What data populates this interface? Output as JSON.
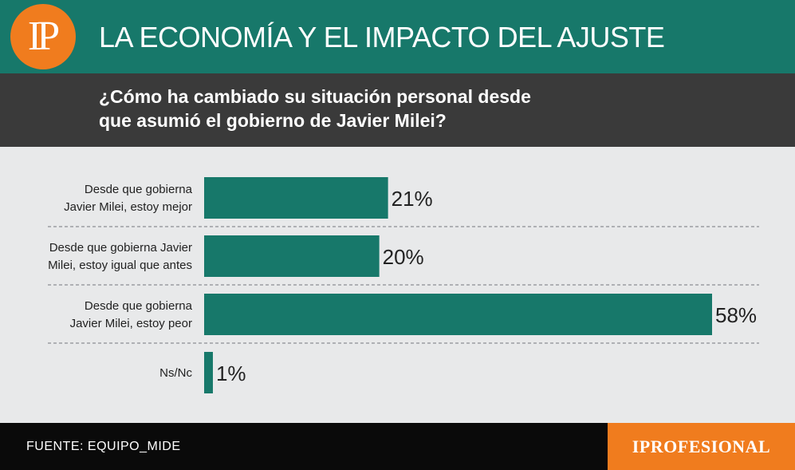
{
  "header": {
    "logo_text": "IP",
    "title": "LA ECONOMÍA Y EL IMPACTO DEL AJUSTE"
  },
  "question": {
    "line1": "¿Cómo ha cambiado su situación personal desde",
    "line2": "que asumió el gobierno de Javier Milei?"
  },
  "chart_data": {
    "type": "bar",
    "orientation": "horizontal",
    "categories": [
      [
        "Desde que gobierna",
        "Javier Milei, estoy mejor"
      ],
      [
        "Desde que gobierna Javier",
        "Milei, estoy igual que antes"
      ],
      [
        "Desde que gobierna",
        "Javier Milei, estoy peor"
      ],
      [
        "Ns/Nc"
      ]
    ],
    "values": [
      21,
      20,
      58,
      1
    ],
    "value_labels": [
      "21%",
      "20%",
      "58%",
      "1%"
    ],
    "unit": "%",
    "xlim": [
      0,
      58
    ],
    "grid": false,
    "colors": {
      "bar": "#17786a",
      "divider": "#8a8f93",
      "label": "#222222"
    }
  },
  "footer": {
    "source": "FUENTE: EQUIPO_MIDE",
    "brand": "IPROFESIONAL"
  },
  "colors": {
    "header_bg": "#17786a",
    "question_bg": "#3a3a3a",
    "chart_bg": "#e8e9ea",
    "footer_bg": "#0a0a0a",
    "accent_orange": "#f07c1e"
  }
}
